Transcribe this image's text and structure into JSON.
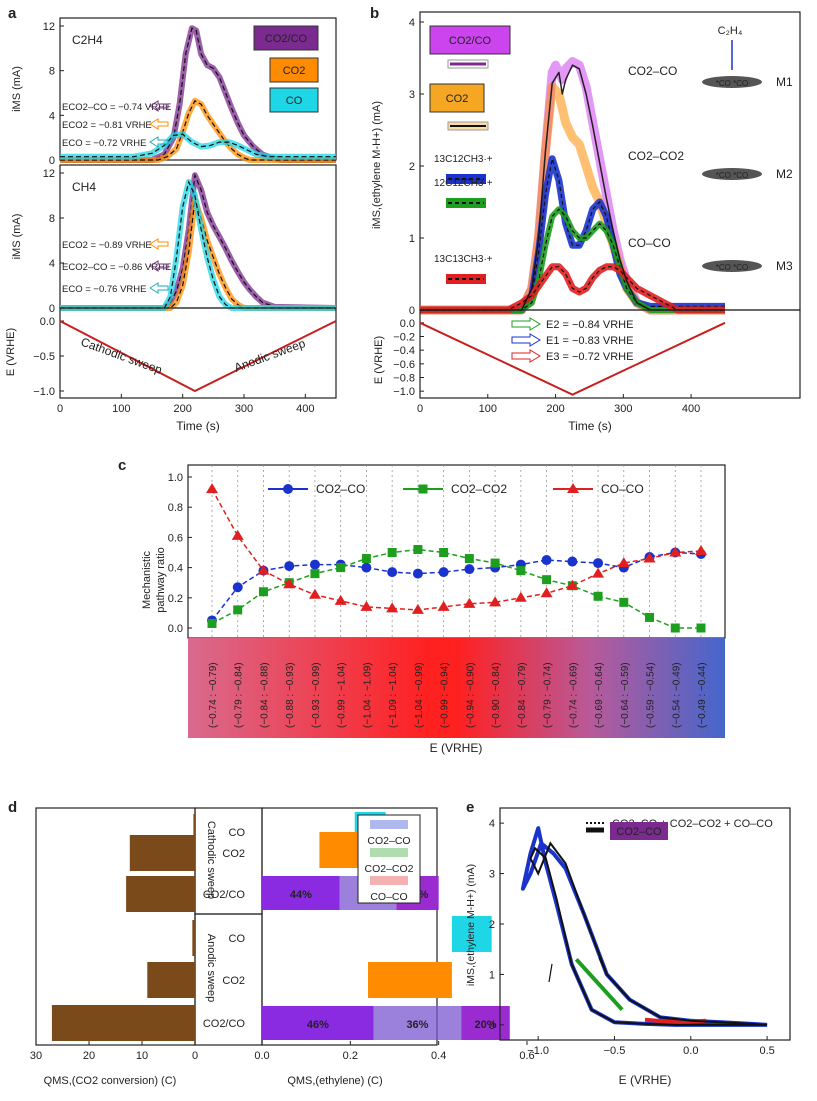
{
  "figure": {
    "panels": [
      {
        "letter": "a"
      },
      {
        "letter": "b"
      },
      {
        "letter": "c"
      },
      {
        "letter": "d"
      },
      {
        "letter": "e"
      }
    ]
  },
  "colors": {
    "co2co": "#7b2b8f",
    "co2co_fill": "#cc44ee",
    "co2": "#ff8c00",
    "co": "#1ed6e6",
    "blue": "#1a33cc",
    "green": "#1e9e1e",
    "red": "#e02020",
    "sweep_red": "#c81e1e",
    "brown": "#7b4a1a"
  },
  "chart_data": [
    {
      "panel": "a-top",
      "type": "line",
      "title": "C2H4",
      "ylabel": "iMS (mA)",
      "ylim": [
        0,
        12
      ],
      "yticks": [
        "0",
        "4",
        "8",
        "12"
      ],
      "xlim": [
        0,
        450
      ],
      "legend": [
        "CO2/CO",
        "CO2",
        "CO"
      ],
      "annotations": [
        {
          "label": "ECO2–CO = −0.74 VRHE",
          "color": "#7b2b8f"
        },
        {
          "label": "ECO2 = −0.81 VRHE",
          "color": "#ff8c00"
        },
        {
          "label": "ECO = −0.72 VRHE",
          "color": "#1aaab8"
        }
      ],
      "series": [
        {
          "name": "CO2/CO",
          "color": "#7b2b8f",
          "x": [
            0,
            150,
            170,
            185,
            195,
            205,
            215,
            222,
            230,
            240,
            250,
            260,
            270,
            280,
            290,
            300,
            315,
            330,
            345,
            360,
            450
          ],
          "y": [
            0,
            0,
            0.5,
            2.0,
            5.0,
            9.5,
            11.8,
            11.6,
            9.5,
            8.5,
            8.2,
            7.4,
            6.0,
            4.6,
            3.3,
            2.2,
            1.2,
            0.5,
            0.2,
            0,
            0
          ]
        },
        {
          "name": "CO2",
          "color": "#ff8c00",
          "x": [
            0,
            160,
            175,
            190,
            200,
            210,
            220,
            230,
            240,
            250,
            260,
            270,
            280,
            290,
            300,
            310,
            450
          ],
          "y": [
            0,
            0,
            0.3,
            1.0,
            2.5,
            4.2,
            5.3,
            5.0,
            4.0,
            3.2,
            2.4,
            1.6,
            1.0,
            0.5,
            0.2,
            0,
            0
          ]
        },
        {
          "name": "CO",
          "color": "#1ed6e6",
          "x": [
            0,
            120,
            150,
            170,
            185,
            200,
            215,
            230,
            245,
            260,
            275,
            290,
            305,
            320,
            340,
            360,
            450
          ],
          "y": [
            0.3,
            0.3,
            0.6,
            1.3,
            2.2,
            2.3,
            1.6,
            1.2,
            1.3,
            1.6,
            1.6,
            1.3,
            0.9,
            0.5,
            0.3,
            0.3,
            0.3
          ]
        }
      ]
    },
    {
      "panel": "a-middle",
      "type": "line",
      "title": "CH4",
      "ylabel": "iMS (mA)",
      "ylim": [
        0,
        12
      ],
      "yticks": [
        "0",
        "4",
        "8",
        "12"
      ],
      "xlim": [
        0,
        450
      ],
      "annotations": [
        {
          "label": "ECO2 = −0.89 VRHE",
          "color": "#ff8c00"
        },
        {
          "label": "ECO2–CO = −0.86 VRHE",
          "color": "#7b2b8f"
        },
        {
          "label": "ECO = −0.76 VRHE",
          "color": "#1aaab8"
        }
      ],
      "series": [
        {
          "name": "CO2/CO",
          "color": "#7b2b8f",
          "x": [
            0,
            170,
            180,
            190,
            200,
            210,
            220,
            230,
            240,
            250,
            260,
            270,
            280,
            290,
            300,
            310,
            320,
            330,
            350,
            450
          ],
          "y": [
            0,
            0,
            0.5,
            1.5,
            3.5,
            7.0,
            11.8,
            10.5,
            8.5,
            7.3,
            6.3,
            5.3,
            4.2,
            3.2,
            2.3,
            1.6,
            1.0,
            0.5,
            0.1,
            0
          ]
        },
        {
          "name": "CO2",
          "color": "#ff8c00",
          "x": [
            0,
            180,
            190,
            200,
            210,
            220,
            230,
            240,
            250,
            260,
            270,
            280,
            290,
            300,
            450
          ],
          "y": [
            0,
            0,
            0.5,
            2.0,
            5.0,
            9.6,
            8.0,
            6.0,
            4.5,
            3.0,
            1.8,
            0.8,
            0.3,
            0,
            0
          ]
        },
        {
          "name": "CO",
          "color": "#1ed6e6",
          "x": [
            0,
            170,
            180,
            190,
            200,
            210,
            220,
            230,
            240,
            250,
            260,
            270,
            280,
            450
          ],
          "y": [
            0,
            0,
            1.0,
            4.5,
            9.0,
            11.2,
            10.0,
            7.0,
            4.5,
            2.5,
            1.0,
            0.3,
            0,
            0
          ]
        }
      ]
    },
    {
      "panel": "a-bottom",
      "type": "line",
      "xlabel": "Time (s)",
      "ylabel": "E (VRHE)",
      "xlim": [
        0,
        450
      ],
      "ylim": [
        -1.1,
        0.1
      ],
      "yticks": [
        "0.0",
        "−0.5",
        "−1.0"
      ],
      "xticks": [
        "0",
        "100",
        "200",
        "300",
        "400"
      ],
      "labels": [
        "Cathodic sweep",
        "Anodic sweep"
      ],
      "series": [
        {
          "name": "E",
          "color": "#c81e1e",
          "x": [
            0,
            220,
            450
          ],
          "y": [
            0.0,
            -1.0,
            0.0
          ]
        }
      ]
    },
    {
      "panel": "b",
      "type": "line",
      "xlabel": "Time (s)",
      "ylabel": "iMS,(ethylene M-H+) (mA)",
      "xlim": [
        0,
        450
      ],
      "ylim": [
        0,
        4
      ],
      "yticks": [
        "0",
        "1",
        "2",
        "3",
        "4"
      ],
      "legend": [
        "CO2/CO",
        "CO2",
        "13C12CH3·+",
        "12C12CH3·+",
        "13C13CH3·+"
      ],
      "pathway_labels": [
        "CO2–CO",
        "CO2–CO2",
        "CO–CO"
      ],
      "mechanisms": [
        "M1",
        "M2",
        "M3"
      ],
      "series": [
        {
          "name": "CO2/CO",
          "color": "#cc44ee",
          "x": [
            0,
            150,
            165,
            175,
            185,
            195,
            200,
            205,
            210,
            215,
            225,
            235,
            245,
            255,
            265,
            275,
            285,
            295,
            305,
            320,
            340,
            450
          ],
          "y": [
            0,
            0,
            0.3,
            1.0,
            2.2,
            3.3,
            3.4,
            3.3,
            3.2,
            3.35,
            3.45,
            3.4,
            3.1,
            2.6,
            2.1,
            1.6,
            1.1,
            0.7,
            0.4,
            0.1,
            0,
            0
          ]
        },
        {
          "name": "CO2",
          "color": "#ff8c00",
          "x": [
            0,
            150,
            165,
            175,
            185,
            195,
            205,
            215,
            225,
            235,
            245,
            255,
            265,
            275,
            285,
            295,
            305,
            320,
            340,
            450
          ],
          "y": [
            0,
            0,
            0.3,
            1.0,
            2.2,
            3.1,
            3.0,
            2.6,
            2.4,
            2.3,
            2.0,
            1.7,
            1.5,
            1.2,
            0.9,
            0.6,
            0.3,
            0.1,
            0,
            0
          ]
        },
        {
          "name": "13C12CH3·+",
          "color": "#1a33cc",
          "x": [
            0,
            150,
            165,
            175,
            185,
            195,
            205,
            215,
            225,
            235,
            245,
            255,
            265,
            275,
            285,
            295,
            305,
            320,
            340,
            420,
            450
          ],
          "y": [
            0,
            0,
            0.2,
            0.8,
            1.6,
            2.1,
            1.8,
            1.2,
            0.9,
            0.9,
            1.1,
            1.4,
            1.5,
            1.3,
            0.9,
            0.5,
            0.3,
            0.1,
            0.05,
            0.05,
            0.05
          ]
        },
        {
          "name": "12C12CH3·+",
          "color": "#1e9e1e",
          "x": [
            0,
            150,
            165,
            175,
            185,
            195,
            205,
            215,
            225,
            235,
            245,
            255,
            265,
            275,
            285,
            295,
            305,
            320,
            340,
            450
          ],
          "y": [
            0,
            0,
            0.1,
            0.4,
            0.9,
            1.3,
            1.4,
            1.3,
            1.1,
            1.0,
            1.0,
            1.1,
            1.2,
            1.1,
            0.9,
            0.6,
            0.3,
            0.1,
            0,
            0
          ]
        },
        {
          "name": "13C13CH3·+",
          "color": "#e02020",
          "x": [
            0,
            130,
            150,
            165,
            180,
            195,
            205,
            215,
            225,
            235,
            245,
            255,
            265,
            275,
            285,
            295,
            305,
            320,
            340,
            360,
            380,
            450
          ],
          "y": [
            0,
            0,
            0.1,
            0.2,
            0.4,
            0.6,
            0.6,
            0.5,
            0.3,
            0.25,
            0.3,
            0.45,
            0.55,
            0.6,
            0.6,
            0.55,
            0.45,
            0.3,
            0.2,
            0.1,
            0,
            0
          ]
        },
        {
          "name": "fit",
          "color": "#111111",
          "x": [
            0,
            150,
            165,
            175,
            185,
            195,
            205,
            210,
            215,
            225,
            235,
            245,
            255,
            265,
            275,
            285,
            295,
            305,
            320,
            340,
            450
          ],
          "y": [
            0,
            0,
            0.3,
            1.0,
            2.2,
            3.15,
            3.3,
            3.0,
            3.2,
            3.4,
            3.35,
            3.0,
            2.55,
            2.05,
            1.55,
            1.1,
            0.7,
            0.4,
            0.1,
            0,
            0
          ]
        }
      ]
    },
    {
      "panel": "b-bottom",
      "type": "line",
      "xlabel": "Time (s)",
      "ylabel": "E (VRHE)",
      "xlim": [
        0,
        450
      ],
      "ylim": [
        -1.1,
        0.1
      ],
      "xticks": [
        "0",
        "100",
        "200",
        "300",
        "400"
      ],
      "yticks": [
        "0.0",
        "−0.2",
        "−0.4",
        "−0.6",
        "−0.8",
        "−1.0"
      ],
      "annotations": [
        {
          "label": "E2 = −0.84 VRHE",
          "color": "#1e9e1e"
        },
        {
          "label": "E1 = −0.83 VRHE",
          "color": "#1a33cc"
        },
        {
          "label": "E3 = −0.72 VRHE",
          "color": "#e02020"
        }
      ],
      "series": [
        {
          "name": "E",
          "color": "#c81e1e",
          "x": [
            0,
            225,
            450
          ],
          "y": [
            0.0,
            -1.05,
            0.0
          ]
        }
      ]
    },
    {
      "panel": "c",
      "type": "line",
      "xlabel": "E (VRHE)",
      "ylabel": "Mechanistic pathway ratio",
      "ylim": [
        0,
        1.0
      ],
      "yticks": [
        "0.0",
        "0.2",
        "0.4",
        "0.6",
        "0.8",
        "1.0"
      ],
      "categories": [
        "(−0.74 : −0.79)",
        "(−0.79 : −0.84)",
        "(−0.84 : −0.88)",
        "(−0.88 : −0.93)",
        "(−0.93 : −0.99)",
        "(−0.99 : −1.04)",
        "(−1.04 : −1.09)",
        "(−1.09 : −1.04)",
        "(−1.04 : −0.99)",
        "(−0.99 : −0.94)",
        "(−0.94 : −0.90)",
        "(−0.90 : −0.84)",
        "(−0.84 : −0.79)",
        "(−0.79 : −0.74)",
        "(−0.74 : −0.69)",
        "(−0.69 : −0.64)",
        "(−0.64 : −0.59)",
        "(−0.59 : −0.54)",
        "(−0.54 : −0.49)",
        "(−0.49 : −0.44)"
      ],
      "series": [
        {
          "name": "CO2–CO",
          "color": "#1a33cc",
          "marker": "circle",
          "values": [
            0.05,
            0.27,
            0.38,
            0.41,
            0.42,
            0.42,
            0.4,
            0.37,
            0.36,
            0.37,
            0.39,
            0.4,
            0.42,
            0.45,
            0.44,
            0.43,
            0.4,
            0.47,
            0.5,
            0.49
          ]
        },
        {
          "name": "CO2–CO2",
          "color": "#1e9e1e",
          "marker": "square",
          "values": [
            0.03,
            0.12,
            0.24,
            0.3,
            0.36,
            0.4,
            0.46,
            0.5,
            0.52,
            0.5,
            0.46,
            0.43,
            0.38,
            0.32,
            0.28,
            0.21,
            0.17,
            0.07,
            0.0,
            0.0
          ]
        },
        {
          "name": "CO–CO",
          "color": "#e02020",
          "marker": "triangle",
          "values": [
            0.92,
            0.61,
            0.38,
            0.29,
            0.22,
            0.18,
            0.14,
            0.13,
            0.12,
            0.14,
            0.16,
            0.17,
            0.2,
            0.23,
            0.28,
            0.36,
            0.43,
            0.46,
            0.5,
            0.51
          ]
        }
      ]
    },
    {
      "panel": "d",
      "type": "bar",
      "sections": [
        "Cathodic sweep",
        "Anodic sweep"
      ],
      "categories": [
        "CO",
        "CO2",
        "CO2/CO",
        "CO",
        "CO2",
        "CO2/CO"
      ],
      "left": {
        "xlabel": "QMS,(CO2 conversion) (C)",
        "xticks": [
          "30",
          "20",
          "10",
          "0"
        ],
        "xlim": [
          0,
          30
        ],
        "values": [
          0.3,
          12.3,
          13.0,
          0.5,
          9.0,
          27.0
        ]
      },
      "right": {
        "xlabel": "QMS,(ethylene) (C)",
        "xticks": [
          "0.0",
          "0.2",
          "0.4",
          "0.6"
        ],
        "xlim": [
          0,
          0.6
        ],
        "values": [
          0.28,
          0.22,
          0.4,
          0.52,
          0.43,
          0.55
        ],
        "stacks": {
          "cathodic": [
            "44%",
            "32%",
            "24%"
          ],
          "anodic": [
            "46%",
            "36%",
            "20%"
          ]
        },
        "legend": [
          "CO2–CO",
          "CO2–CO2",
          "CO–CO"
        ]
      }
    },
    {
      "panel": "e",
      "type": "line",
      "xlabel": "E (VRHE)",
      "ylabel": "iMS,(ethylene M-H+) (mA)",
      "xlim": [
        -1.25,
        0.65
      ],
      "ylim": [
        -0.3,
        4.3
      ],
      "xticks": [
        "−1.0",
        "−0.5",
        "0.0",
        "0.5"
      ],
      "yticks": [
        "0",
        "1",
        "2",
        "3",
        "4"
      ],
      "legend": [
        "CO2–CO + CO2–CO2 + CO–CO",
        "CO2–CO"
      ],
      "series": [
        {
          "name": "CO2–CO",
          "color": "#222222",
          "x": [
            0.5,
            0.3,
            0.1,
            -0.1,
            -0.3,
            -0.5,
            -0.65,
            -0.78,
            -0.88,
            -0.95,
            -1.02,
            -1.05,
            -1.0,
            -0.92,
            -0.82,
            -0.7,
            -0.55,
            -0.4,
            -0.2,
            0.0,
            0.2,
            0.4,
            0.5
          ],
          "y": [
            0.0,
            0.0,
            0.0,
            0.0,
            0.02,
            0.05,
            0.3,
            1.2,
            2.5,
            3.3,
            3.5,
            3.3,
            3.0,
            3.6,
            3.2,
            2.2,
            1.0,
            0.5,
            0.15,
            0.08,
            0.05,
            0.02,
            0.0
          ]
        },
        {
          "name": "sum",
          "color": "#1a33cc",
          "x": [
            0.5,
            0.3,
            0.1,
            -0.1,
            -0.3,
            -0.5,
            -0.65,
            -0.78,
            -0.88,
            -0.95,
            -1.0,
            -1.05,
            -1.1,
            -1.05,
            -0.98,
            -0.9,
            -0.82,
            -0.7,
            -0.55,
            -0.4,
            -0.2,
            0.0,
            0.2,
            0.4,
            0.5
          ],
          "y": [
            0.0,
            0.0,
            0.0,
            0.0,
            0.02,
            0.05,
            0.3,
            1.2,
            2.4,
            3.2,
            3.9,
            3.4,
            2.7,
            3.0,
            3.6,
            3.4,
            3.1,
            2.2,
            1.0,
            0.5,
            0.15,
            0.08,
            0.05,
            0.02,
            0.0
          ]
        }
      ]
    }
  ]
}
